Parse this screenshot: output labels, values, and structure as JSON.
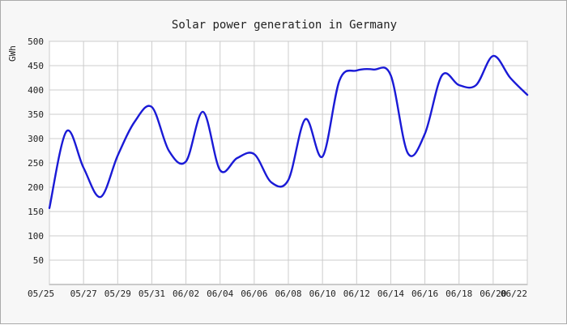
{
  "chart_data": {
    "type": "line",
    "title": "Solar power generation in Germany",
    "ylabel": "GWh",
    "xlabel": "",
    "ylim": [
      0,
      500
    ],
    "y_ticks": [
      50,
      100,
      150,
      200,
      250,
      300,
      350,
      400,
      450,
      500
    ],
    "x_ticks": [
      "05/25",
      "05/27",
      "05/29",
      "05/31",
      "06/02",
      "06/04",
      "06/06",
      "06/08",
      "06/10",
      "06/12",
      "06/14",
      "06/16",
      "06/18",
      "06/20",
      "06/22"
    ],
    "grid": true,
    "line_color": "#1a1ad6",
    "series": [
      {
        "name": "",
        "x": [
          "05/25",
          "05/26",
          "05/27",
          "05/28",
          "05/29",
          "05/30",
          "05/31",
          "06/01",
          "06/02",
          "06/03",
          "06/04",
          "06/05",
          "06/06",
          "06/07",
          "06/08",
          "06/09",
          "06/10",
          "06/11",
          "06/12",
          "06/13",
          "06/14",
          "06/15",
          "06/16",
          "06/17",
          "06/18",
          "06/19",
          "06/20",
          "06/21",
          "06/22"
        ],
        "values": [
          157,
          315,
          240,
          180,
          265,
          335,
          365,
          275,
          253,
          355,
          235,
          260,
          268,
          210,
          215,
          340,
          263,
          420,
          440,
          442,
          430,
          270,
          310,
          430,
          410,
          410,
          470,
          425,
          390
        ]
      }
    ]
  }
}
